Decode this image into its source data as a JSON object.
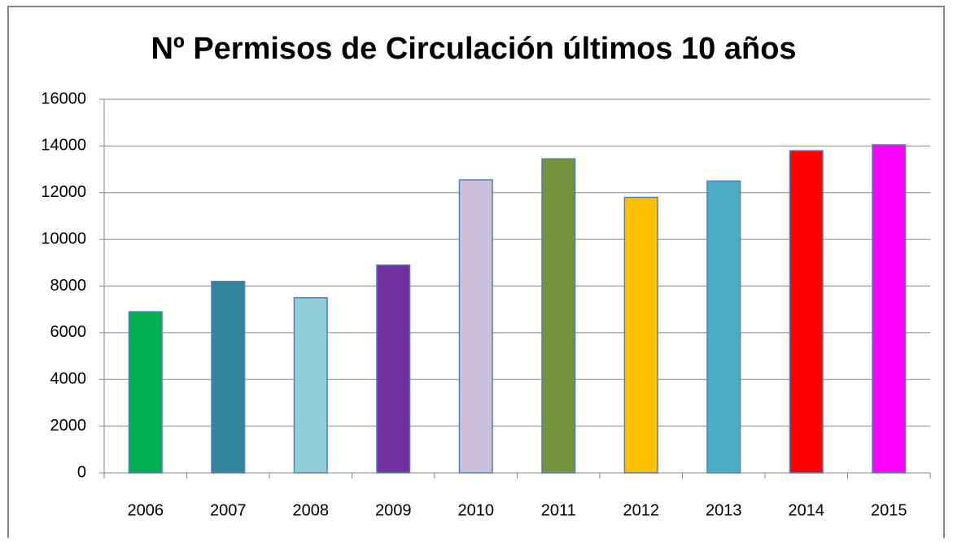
{
  "chart_data": {
    "type": "bar",
    "title": "Nº Permisos de Circulación últimos 10 años",
    "categories": [
      "2006",
      "2007",
      "2008",
      "2009",
      "2010",
      "2011",
      "2012",
      "2013",
      "2014",
      "2015"
    ],
    "values": [
      6900,
      8200,
      7500,
      8900,
      12550,
      13450,
      11800,
      12500,
      13800,
      14050
    ],
    "colors": [
      "#00b050",
      "#31859c",
      "#92cddc",
      "#7030a0",
      "#ccc0da",
      "#76923c",
      "#ffc000",
      "#4bacc6",
      "#ff0000",
      "#ff00ff"
    ],
    "ylim": [
      0,
      16000
    ],
    "yticks": [
      0,
      2000,
      4000,
      6000,
      8000,
      10000,
      12000,
      14000,
      16000
    ],
    "grid": true
  }
}
